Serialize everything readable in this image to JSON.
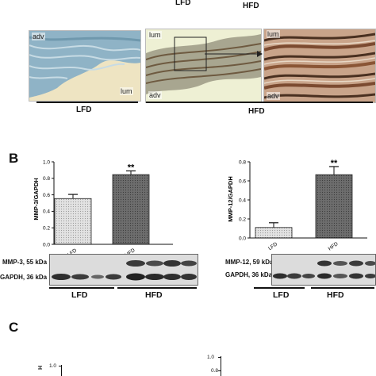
{
  "panel_a": {
    "top_label_lfd": "LFD",
    "top_label_hfd": "HFD",
    "image1": {
      "labels": [
        "adv",
        "lum"
      ]
    },
    "image2": {
      "labels": [
        "lum",
        "adv"
      ]
    },
    "image3": {
      "labels": [
        "lum",
        "adv"
      ]
    },
    "group_lfd": "LFD",
    "group_hfd": "HFD"
  },
  "panel_b": {
    "letter": "B",
    "blot_left": {
      "row1": "MMP-3, 55 kDa",
      "row2": "GAPDH, 36 kDa",
      "group1": "LFD",
      "group2": "HFD"
    },
    "blot_right": {
      "row1": "MMP-12, 59 kDa",
      "row2": "GAPDH, 36 kDa",
      "group1": "LFD",
      "group2": "HFD"
    }
  },
  "panel_c": {
    "letter": "C",
    "ylabel_fragment": "H",
    "left_ticks": [
      "1.0"
    ],
    "right_ticks": [
      "1.0",
      "0.8"
    ]
  },
  "colors": {
    "lfd_bar": "#d6d6d6",
    "hfd_bar": "#6d6d6d"
  },
  "chart_data": [
    {
      "type": "bar",
      "categories": [
        "LFD",
        "HFD"
      ],
      "values": [
        0.555,
        0.845
      ],
      "errors": [
        0.05,
        0.045
      ],
      "ylabel": "MMP-3/GAPDH",
      "ylim": [
        0,
        1.0
      ],
      "yticks": [
        "0.0",
        "0.2",
        "0.4",
        "0.6",
        "0.8",
        "1.0"
      ],
      "annotations": [
        {
          "category": "HFD",
          "text": "**"
        }
      ]
    },
    {
      "type": "bar",
      "categories": [
        "LFD",
        "HFD"
      ],
      "values": [
        0.11,
        0.665
      ],
      "errors": [
        0.05,
        0.085
      ],
      "ylabel": "MMP-12/GAPDH",
      "ylim": [
        0,
        0.8
      ],
      "yticks": [
        "0.0",
        "0.2",
        "0.4",
        "0.6",
        "0.8"
      ],
      "annotations": [
        {
          "category": "HFD",
          "text": "**"
        }
      ]
    }
  ]
}
